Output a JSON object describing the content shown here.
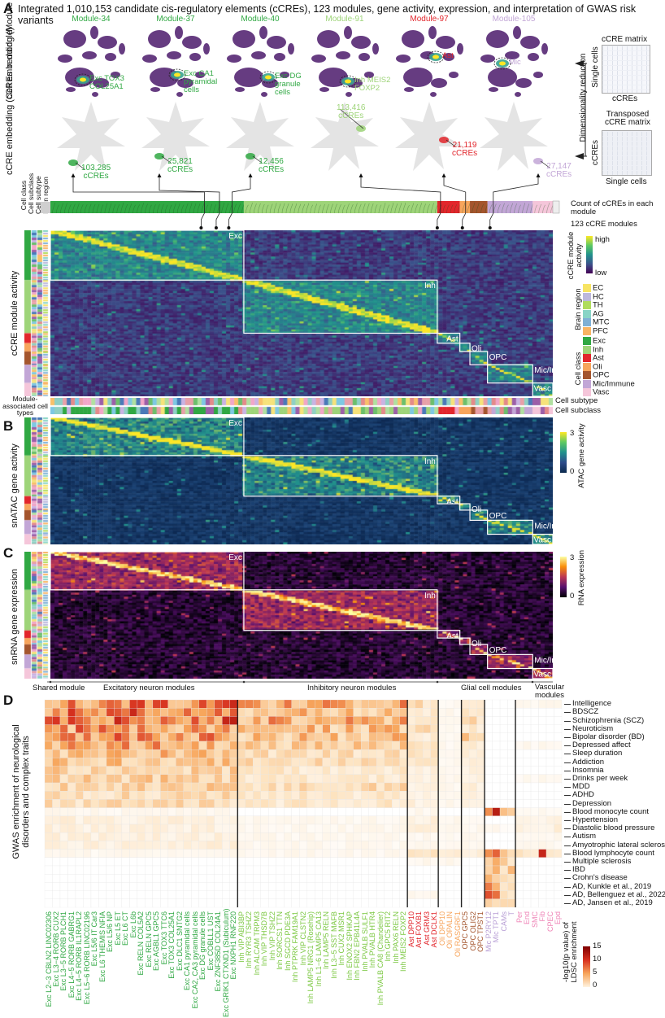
{
  "title": {
    "letter": "A",
    "text": "Integrated 1,010,153 candidate cis-regulatory elements (cCREs), 123 modules, gene activity, expression, and interpretation of GWAS risk variants"
  },
  "colors": {
    "Exc": "#30a843",
    "Inh": "#9ed479",
    "Ast": "#e2262c",
    "Oli": "#f7a55c",
    "OPC": "#a4552d",
    "Mic/Immune": "#c2a6d6",
    "Vasc": "#f5c6da",
    "Shared": "#cfcfcf"
  },
  "panel_a": {
    "row_labels": {
      "cell_embedding": "Cell embedding (Module activity)",
      "ccre_embedding": "cCRE embedding (cCREs in module)"
    },
    "modules": [
      {
        "name": "Module-34",
        "class": "Exc",
        "cell_type": "Exc TOX3 COL25A1",
        "ccre_count": "103,285",
        "ccre_unit": "cCREs"
      },
      {
        "name": "Module-37",
        "class": "Exc",
        "cell_type": "Exc CA1 pyramidal cells",
        "ccre_count": "25,821",
        "ccre_unit": "cCREs"
      },
      {
        "name": "Module-40",
        "class": "Exc",
        "cell_type": "Exc DG granule cells",
        "ccre_count": "12,456",
        "ccre_unit": "cCREs"
      },
      {
        "name": "Module-91",
        "class": "Inh",
        "cell_type": "Inh MEIS2 FOXP2",
        "ccre_count": "113,416",
        "ccre_unit": "cCREs"
      },
      {
        "name": "Module-97",
        "class": "Ast",
        "cell_type": "Ast",
        "ccre_count": "21,119",
        "ccre_unit": "cCREs"
      },
      {
        "name": "Module-105",
        "class": "Mic/Immune",
        "cell_type": "Mic",
        "ccre_count": "27,147",
        "ccre_unit": "cCREs"
      }
    ],
    "schematic": {
      "matrix_title": "cCRE matrix",
      "matrix_y": "Single cells",
      "matrix_x": "cCREs",
      "transposed_title": "Transposed cCRE matrix",
      "transposed_y": "cCREs",
      "transposed_x": "Single cells",
      "arrow_label": "Dimensionality reduction"
    },
    "strip": {
      "count_label": "Count of cCREs in each module",
      "modules_label": "123 cCRE modules"
    },
    "annotation_labels": [
      "Cell class",
      "Cell subclass",
      "Cell subtype",
      "Brain region"
    ],
    "heatmap_ylabel": "cCRE module activity",
    "colorbar": {
      "title": "cCRE module activity",
      "high": "high",
      "low": "low"
    },
    "brain_region": {
      "title": "Brain region",
      "items": [
        {
          "label": "EC",
          "color": "#f7e463"
        },
        {
          "label": "HC",
          "color": "#bcb8dc"
        },
        {
          "label": "TH",
          "color": "#b0dc5c"
        },
        {
          "label": "AG",
          "color": "#88d4c6"
        },
        {
          "label": "MTC",
          "color": "#7fb0d6"
        },
        {
          "label": "PFC",
          "color": "#f9b464"
        }
      ]
    },
    "cell_class": {
      "title": "Cell class",
      "items": [
        {
          "label": "Exc",
          "color": "#30a843"
        },
        {
          "label": "Inh",
          "color": "#9ed479"
        },
        {
          "label": "Ast",
          "color": "#e2262c"
        },
        {
          "label": "Oli",
          "color": "#f7a55c"
        },
        {
          "label": "OPC",
          "color": "#a4552d"
        },
        {
          "label": "Mic/Immune",
          "color": "#c2a6d6"
        },
        {
          "label": "Vasc",
          "color": "#f5c6da"
        }
      ]
    },
    "bottom_strips": {
      "left_label": "Module-associated cell types",
      "subtype": "Cell subtype",
      "subclass": "Cell subclass"
    }
  },
  "blocks": [
    "Exc",
    "Inh",
    "Ast",
    "Oli",
    "OPC",
    "Mic/Immune",
    "Vasc"
  ],
  "panel_b": {
    "letter": "B",
    "ylabel": "snATAC gene activity",
    "colorbar": {
      "title": "ATAC gene activity",
      "max": "3",
      "min": "0"
    }
  },
  "panel_c": {
    "letter": "C",
    "ylabel": "snRNA gene expression",
    "colorbar": {
      "title": "RNA expression",
      "max": "3",
      "min": "0"
    }
  },
  "module_groups": [
    "Shared module",
    "Excitatory neuron modules",
    "Inhibitory neuron modules",
    "Glial cell modules",
    "Vascular modules"
  ],
  "chart_data": {
    "type": "heatmap",
    "panel": "D",
    "ylabel": "GWAS enrichment of neurological disorders and complex traits",
    "colorbar": {
      "title": "-log10(p value) of LDSC enrichment",
      "ticks": [
        "15",
        "10",
        "5",
        "0"
      ],
      "range": [
        0,
        15
      ]
    },
    "column_groups": [
      {
        "group": "Exc",
        "color": "#30a843",
        "columns": [
          "Exc L2−3 CBLN2 LINC02306",
          "Exc L3−4 RORB CUX2",
          "Exc L3−5 RORB PLCH1",
          "Exc L4−5 RORB GABRG1",
          "Exc L4−5 RORB IL1RAPL2",
          "Exc L5−6 RORB LINC02196",
          "Exc L5/6 IT Car3",
          "Exc L6 THEMIS NFIA",
          "Exc L5/6 NP",
          "Exc L5 ET",
          "Exc L6 CT",
          "Exc L6b",
          "Exc RELN COL5A2",
          "Exc RELN GPC5",
          "Exc AGBL1 GPC5",
          "Exc TOX3 TTC6",
          "Exc TOX3 COL25A1",
          "Exc DLC1 SNTG2",
          "Exc CA1 pyramidal cells",
          "Exc CA2, CA3 pyramidal cells",
          "Exc DG granule cells",
          "Exc COBLL1 UST",
          "Exc ZNF385D COL24A1",
          "Exc GRIK1 CTXND1 (Subiculum)",
          "Exc NXPH1 RNF220"
        ]
      },
      {
        "group": "Inh",
        "color": "#7cc843",
        "columns": [
          "Inh VIP ABI3BP",
          "Inh RYR3 TSHZ2",
          "Inh ALCAM TRPM3",
          "Inh VIP THSD7B",
          "Inh VIP TSHZ2",
          "Inh SORCS1 TTN",
          "Inh SGCD PDE3A",
          "Inh PTPRK FAM19A1",
          "Inh VIP CLSTN2",
          "Inh LAMP5 NRG1 (Rosehip)",
          "Inh L1−6 LAMP5 CA13",
          "Inh LAMP5 RELN",
          "Inh L3−5 SST MAFB",
          "Inh CUX2 MSR1",
          "Inh ENOX2 SPHKAP",
          "Inh FBN2 EPB41L4A",
          "Inh PVALB SULF1",
          "Inh PVALB HTR4",
          "Inh PVALB CA8 (Chandelier)",
          "Inh GPC5 RIT2",
          "Inh PAX6 RELN",
          "Inh MEIS2 FOXP2"
        ]
      },
      {
        "group": "Ast",
        "color": "#e2262c",
        "columns": [
          "Ast DPP10",
          "Ast FOXB1",
          "Ast GRM3",
          "Ast DCLK1"
        ]
      },
      {
        "group": "Oli",
        "color": "#f7a55c",
        "columns": [
          "Oli DPP10",
          "Oli OPALIN",
          "Oli RASGRF1"
        ]
      },
      {
        "group": "OPC",
        "color": "#a4552d",
        "columns": [
          "OPC GPC5",
          "OPC OLIG2",
          "OPC TPST1"
        ]
      },
      {
        "group": "Mic/Immune",
        "color": "#b9a0d6",
        "columns": [
          "Mic P2RY12",
          "Mic TPT1",
          "CAMs",
          "T"
        ]
      },
      {
        "group": "Vasc",
        "color": "#ef86b8",
        "columns": [
          "Per",
          "End",
          "SMC",
          "Fib",
          "CPEC",
          "Epd"
        ]
      }
    ],
    "group_order": [
      "Exc",
      "Inh",
      "Ast",
      "Oli",
      "OPC",
      "Mic/Immune",
      "Vasc"
    ],
    "rows": [
      {
        "trait": "Intelligence",
        "levels": [
          9,
          7,
          4,
          1,
          3,
          0,
          1
        ]
      },
      {
        "trait": "BDSCZ",
        "levels": [
          9,
          6,
          3,
          1,
          3,
          0,
          0
        ]
      },
      {
        "trait": "Schizophrenia (SCZ)",
        "levels": [
          10,
          7,
          3,
          1,
          4,
          0,
          0
        ]
      },
      {
        "trait": "Neuroticism",
        "levels": [
          8,
          6,
          4,
          1,
          3,
          0,
          0
        ]
      },
      {
        "trait": "Bipolar disorder (BD)",
        "levels": [
          8,
          6,
          3,
          1,
          5,
          0,
          0
        ]
      },
      {
        "trait": "Depressed affect",
        "levels": [
          7,
          5,
          3,
          1,
          3,
          0,
          1
        ]
      },
      {
        "trait": "Sleep duration",
        "levels": [
          6,
          4,
          3,
          1,
          2,
          0,
          0
        ]
      },
      {
        "trait": "Addiction",
        "levels": [
          6,
          4,
          3,
          1,
          2,
          0,
          0
        ]
      },
      {
        "trait": "Insomnia",
        "levels": [
          5,
          3,
          2,
          1,
          2,
          0,
          0
        ]
      },
      {
        "trait": "Drinks per week",
        "levels": [
          5,
          3,
          2,
          1,
          2,
          0,
          1
        ]
      },
      {
        "trait": "MDD",
        "levels": [
          5,
          4,
          2,
          1,
          2,
          0,
          0
        ]
      },
      {
        "trait": "ADHD",
        "levels": [
          4,
          3,
          2,
          1,
          2,
          0,
          0
        ]
      },
      {
        "trait": "Depression",
        "levels": [
          4,
          3,
          2,
          1,
          2,
          0,
          0
        ]
      },
      {
        "trait": "Blood monocyte count",
        "levels": [
          1,
          0,
          1,
          0,
          0,
          11,
          1
        ]
      },
      {
        "trait": "Hypertension",
        "levels": [
          2,
          1,
          2,
          1,
          1,
          0,
          2
        ]
      },
      {
        "trait": "Diastolic blood pressure",
        "levels": [
          2,
          1,
          2,
          1,
          1,
          1,
          2
        ]
      },
      {
        "trait": "Autism",
        "levels": [
          2,
          1,
          1,
          1,
          1,
          0,
          1
        ]
      },
      {
        "trait": "Amyotrophic lateral sclerosis",
        "levels": [
          2,
          1,
          1,
          1,
          1,
          0,
          1
        ]
      },
      {
        "trait": "Blood lymphocyte count",
        "levels": [
          1,
          1,
          3,
          2,
          2,
          8,
          3
        ]
      },
      {
        "trait": "Multiple sclerosis",
        "levels": [
          0,
          0,
          1,
          1,
          0,
          8,
          0
        ]
      },
      {
        "trait": "IBD",
        "levels": [
          0,
          0,
          0,
          0,
          0,
          8,
          0
        ]
      },
      {
        "trait": "Crohn's disease",
        "levels": [
          0,
          0,
          0,
          0,
          0,
          8,
          0
        ]
      },
      {
        "trait": "AD, Kunkle et al., 2019",
        "levels": [
          0,
          0,
          0,
          0,
          0,
          7,
          0
        ]
      },
      {
        "trait": "AD, Bellenguez et al., 2022",
        "levels": [
          0,
          0,
          1,
          0,
          0,
          8,
          0
        ]
      },
      {
        "trait": "AD, Jansen et al., 2019",
        "levels": [
          0,
          0,
          0,
          0,
          0,
          7,
          0
        ]
      }
    ]
  }
}
